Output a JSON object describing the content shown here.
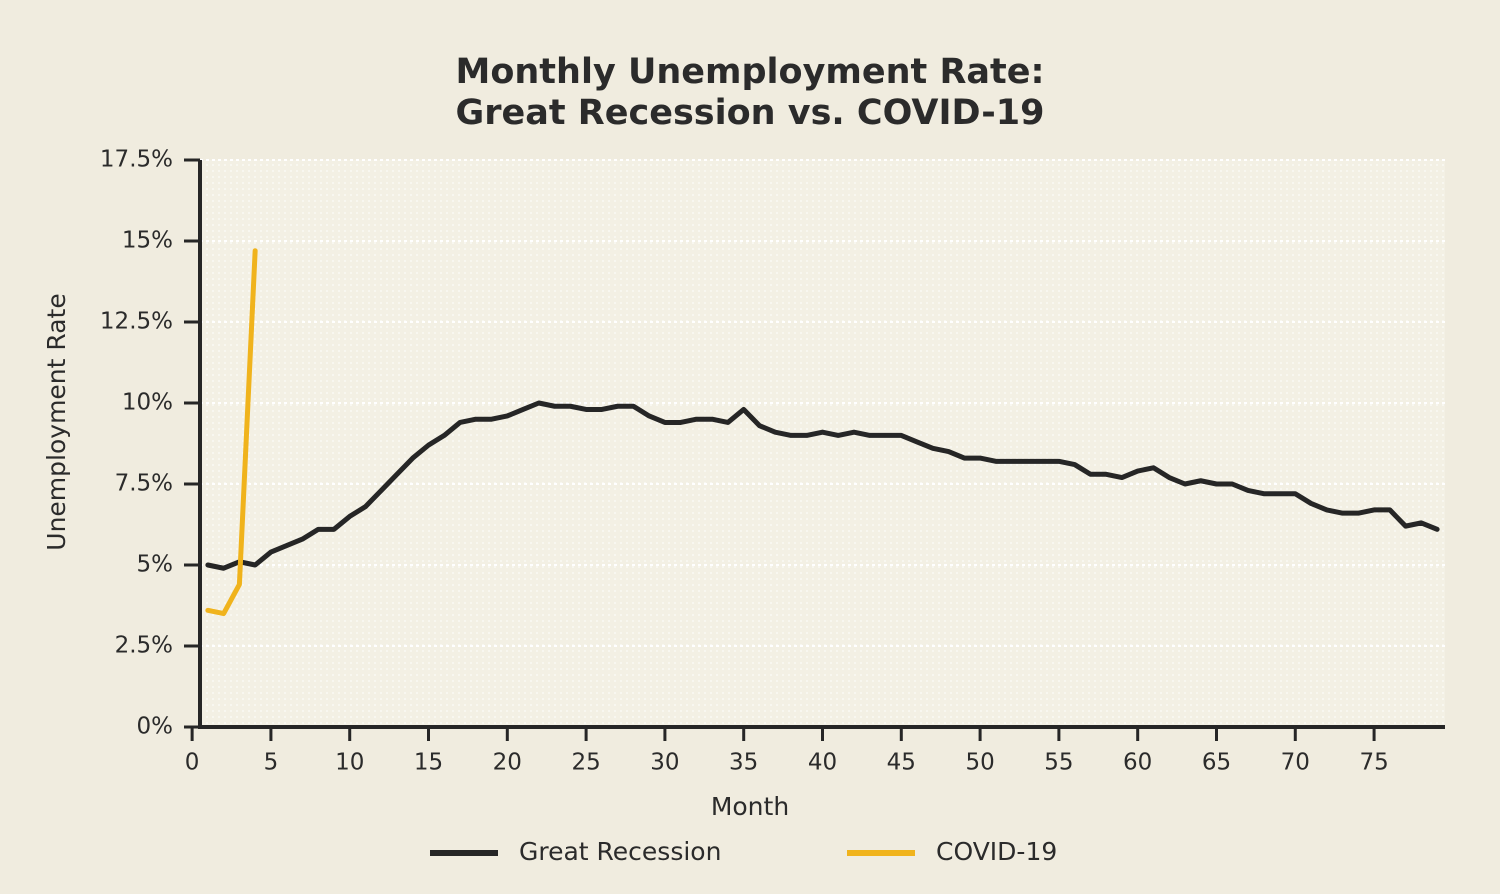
{
  "chart_data": {
    "type": "line",
    "title": [
      "Monthly Unemployment Rate:",
      "Great Recession vs. COVID-19"
    ],
    "xlabel": "Month",
    "ylabel": "Unemployment Rate",
    "xlim": [
      0.5,
      79.5
    ],
    "xticks": [
      0,
      5,
      10,
      15,
      20,
      25,
      30,
      35,
      40,
      45,
      50,
      55,
      60,
      65,
      70,
      75
    ],
    "ylim": [
      0,
      17.5
    ],
    "yticks": [
      {
        "value": 0,
        "label": "0%"
      },
      {
        "value": 2.5,
        "label": "2.5%"
      },
      {
        "value": 5,
        "label": "5%"
      },
      {
        "value": 7.5,
        "label": "7.5%"
      },
      {
        "value": 10,
        "label": "10%"
      },
      {
        "value": 12.5,
        "label": "12.5%"
      },
      {
        "value": 15,
        "label": "15%"
      },
      {
        "value": 17.5,
        "label": "17.5%"
      }
    ],
    "grid": true,
    "legend": "bottom",
    "series": [
      {
        "name": "Great Recession",
        "color": "#262626",
        "x": [
          1,
          2,
          3,
          4,
          5,
          6,
          7,
          8,
          9,
          10,
          11,
          12,
          13,
          14,
          15,
          16,
          17,
          18,
          19,
          20,
          21,
          22,
          23,
          24,
          25,
          26,
          27,
          28,
          29,
          30,
          31,
          32,
          33,
          34,
          35,
          36,
          37,
          38,
          39,
          40,
          41,
          42,
          43,
          44,
          45,
          46,
          47,
          48,
          49,
          50,
          51,
          52,
          53,
          54,
          55,
          56,
          57,
          58,
          59,
          60,
          61,
          62,
          63,
          64,
          65,
          66,
          67,
          68,
          69,
          70,
          71,
          72,
          73,
          74,
          75,
          76,
          77,
          78,
          79
        ],
        "values": [
          5.0,
          4.9,
          5.1,
          5.0,
          5.4,
          5.6,
          5.8,
          6.1,
          6.1,
          6.5,
          6.8,
          7.3,
          7.8,
          8.3,
          8.7,
          9.0,
          9.4,
          9.5,
          9.5,
          9.6,
          9.8,
          10.0,
          9.9,
          9.9,
          9.8,
          9.8,
          9.9,
          9.9,
          9.6,
          9.4,
          9.4,
          9.5,
          9.5,
          9.4,
          9.8,
          9.3,
          9.1,
          9.0,
          9.0,
          9.1,
          9.0,
          9.1,
          9.0,
          9.0,
          9.0,
          8.8,
          8.6,
          8.5,
          8.3,
          8.3,
          8.2,
          8.2,
          8.2,
          8.2,
          8.2,
          8.1,
          7.8,
          7.8,
          7.7,
          7.9,
          8.0,
          7.7,
          7.5,
          7.6,
          7.5,
          7.5,
          7.3,
          7.2,
          7.2,
          7.2,
          6.9,
          6.7,
          6.6,
          6.6,
          6.7,
          6.7,
          6.2,
          6.3,
          6.1
        ]
      },
      {
        "name": "COVID-19",
        "color": "#f0b31c",
        "x": [
          1,
          2,
          3,
          4
        ],
        "values": [
          3.6,
          3.5,
          4.4,
          14.7
        ]
      }
    ]
  }
}
